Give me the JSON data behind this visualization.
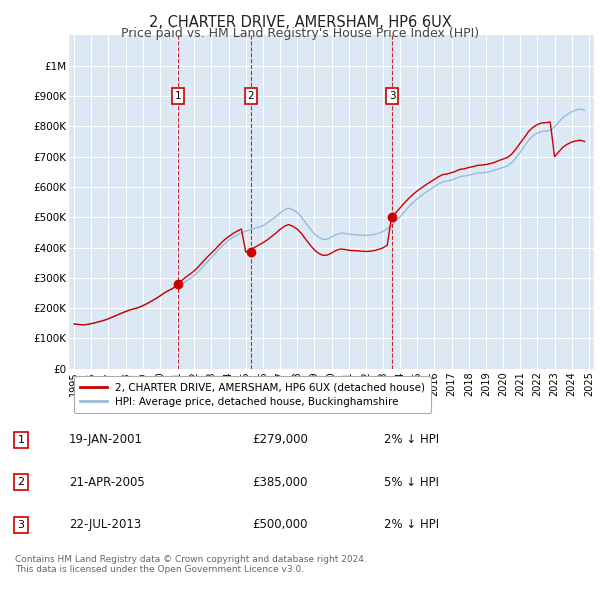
{
  "title": "2, CHARTER DRIVE, AMERSHAM, HP6 6UX",
  "subtitle": "Price paid vs. HM Land Registry's House Price Index (HPI)",
  "title_fontsize": 10.5,
  "subtitle_fontsize": 9,
  "background_color": "#ffffff",
  "plot_bg_color": "#dce9f5",
  "grid_color": "#ffffff",
  "ylim": [
    0,
    1100000
  ],
  "yticks": [
    0,
    100000,
    200000,
    300000,
    400000,
    500000,
    600000,
    700000,
    800000,
    900000,
    1000000
  ],
  "ytick_labels": [
    "£0",
    "£100K",
    "£200K",
    "£300K",
    "£400K",
    "£500K",
    "£600K",
    "£700K",
    "£800K",
    "£900K",
    "£1M"
  ],
  "xlim_start": 1994.7,
  "xlim_end": 2025.3,
  "xtick_years": [
    1995,
    1996,
    1997,
    1998,
    1999,
    2000,
    2001,
    2002,
    2003,
    2004,
    2005,
    2006,
    2007,
    2008,
    2009,
    2010,
    2011,
    2012,
    2013,
    2014,
    2015,
    2016,
    2017,
    2018,
    2019,
    2020,
    2021,
    2022,
    2023,
    2024,
    2025
  ],
  "hpi_line_color": "#99bbdd",
  "price_line_color": "#cc0000",
  "sale_marker_color": "#cc0000",
  "sale_box_color": "#cc0000",
  "vline_color": "#cc0000",
  "sales": [
    {
      "number": 1,
      "year": 2001.05,
      "price": 279000,
      "label": "19-JAN-2001",
      "price_str": "£279,000",
      "pct": "2%",
      "dir": "↓"
    },
    {
      "number": 2,
      "year": 2005.3,
      "price": 385000,
      "label": "21-APR-2005",
      "price_str": "£385,000",
      "pct": "5%",
      "dir": "↓"
    },
    {
      "number": 3,
      "year": 2013.55,
      "price": 500000,
      "label": "22-JUL-2013",
      "price_str": "£500,000",
      "pct": "2%",
      "dir": "↓"
    }
  ],
  "legend_label_red": "2, CHARTER DRIVE, AMERSHAM, HP6 6UX (detached house)",
  "legend_label_blue": "HPI: Average price, detached house, Buckinghamshire",
  "footnote": "Contains HM Land Registry data © Crown copyright and database right 2024.\nThis data is licensed under the Open Government Licence v3.0.",
  "hpi_years": [
    1995.0,
    1995.25,
    1995.5,
    1995.75,
    1996.0,
    1996.25,
    1996.5,
    1996.75,
    1997.0,
    1997.25,
    1997.5,
    1997.75,
    1998.0,
    1998.25,
    1998.5,
    1998.75,
    1999.0,
    1999.25,
    1999.5,
    1999.75,
    2000.0,
    2000.25,
    2000.5,
    2000.75,
    2001.0,
    2001.25,
    2001.5,
    2001.75,
    2002.0,
    2002.25,
    2002.5,
    2002.75,
    2003.0,
    2003.25,
    2003.5,
    2003.75,
    2004.0,
    2004.25,
    2004.5,
    2004.75,
    2005.0,
    2005.25,
    2005.5,
    2005.75,
    2006.0,
    2006.25,
    2006.5,
    2006.75,
    2007.0,
    2007.25,
    2007.5,
    2007.75,
    2008.0,
    2008.25,
    2008.5,
    2008.75,
    2009.0,
    2009.25,
    2009.5,
    2009.75,
    2010.0,
    2010.25,
    2010.5,
    2010.75,
    2011.0,
    2011.25,
    2011.5,
    2011.75,
    2012.0,
    2012.25,
    2012.5,
    2012.75,
    2013.0,
    2013.25,
    2013.5,
    2013.75,
    2014.0,
    2014.25,
    2014.5,
    2014.75,
    2015.0,
    2015.25,
    2015.5,
    2015.75,
    2016.0,
    2016.25,
    2016.5,
    2016.75,
    2017.0,
    2017.25,
    2017.5,
    2017.75,
    2018.0,
    2018.25,
    2018.5,
    2018.75,
    2019.0,
    2019.25,
    2019.5,
    2019.75,
    2020.0,
    2020.25,
    2020.5,
    2020.75,
    2021.0,
    2021.25,
    2021.5,
    2021.75,
    2022.0,
    2022.25,
    2022.5,
    2022.75,
    2023.0,
    2023.25,
    2023.5,
    2023.75,
    2024.0,
    2024.25,
    2024.5,
    2024.75
  ],
  "hpi_values": [
    148000,
    146000,
    145000,
    146000,
    149000,
    152000,
    156000,
    160000,
    165000,
    171000,
    177000,
    183000,
    189000,
    194000,
    198000,
    202000,
    208000,
    215000,
    223000,
    231000,
    240000,
    250000,
    258000,
    265000,
    271000,
    279000,
    288000,
    297000,
    308000,
    321000,
    336000,
    351000,
    366000,
    382000,
    398000,
    412000,
    424000,
    433000,
    441000,
    448000,
    454000,
    459000,
    463000,
    467000,
    472000,
    481000,
    491000,
    502000,
    514000,
    524000,
    530000,
    524000,
    516000,
    500000,
    481000,
    462000,
    445000,
    434000,
    427000,
    427000,
    435000,
    442000,
    447000,
    447000,
    444000,
    443000,
    442000,
    441000,
    440000,
    441000,
    443000,
    447000,
    453000,
    462000,
    473000,
    487000,
    502000,
    518000,
    534000,
    548000,
    561000,
    572000,
    582000,
    592000,
    601000,
    610000,
    617000,
    619000,
    623000,
    628000,
    634000,
    636000,
    639000,
    642000,
    646000,
    647000,
    648000,
    651000,
    655000,
    660000,
    664000,
    669000,
    680000,
    696000,
    715000,
    735000,
    755000,
    769000,
    778000,
    783000,
    784000,
    787000,
    798000,
    814000,
    830000,
    840000,
    848000,
    854000,
    857000,
    853000
  ],
  "price_years": [
    1995.0,
    1995.25,
    1995.5,
    1995.75,
    1996.0,
    1996.25,
    1996.5,
    1996.75,
    1997.0,
    1997.25,
    1997.5,
    1997.75,
    1998.0,
    1998.25,
    1998.5,
    1998.75,
    1999.0,
    1999.25,
    1999.5,
    1999.75,
    2000.0,
    2000.25,
    2000.5,
    2000.75,
    2001.0,
    2001.25,
    2001.5,
    2001.75,
    2002.0,
    2002.25,
    2002.5,
    2002.75,
    2003.0,
    2003.25,
    2003.5,
    2003.75,
    2004.0,
    2004.25,
    2004.5,
    2004.75,
    2005.0,
    2005.25,
    2005.5,
    2005.75,
    2006.0,
    2006.25,
    2006.5,
    2006.75,
    2007.0,
    2007.25,
    2007.5,
    2007.75,
    2008.0,
    2008.25,
    2008.5,
    2008.75,
    2009.0,
    2009.25,
    2009.5,
    2009.75,
    2010.0,
    2010.25,
    2010.5,
    2010.75,
    2011.0,
    2011.25,
    2011.5,
    2011.75,
    2012.0,
    2012.25,
    2012.5,
    2012.75,
    2013.0,
    2013.25,
    2013.5,
    2013.75,
    2014.0,
    2014.25,
    2014.5,
    2014.75,
    2015.0,
    2015.25,
    2015.5,
    2015.75,
    2016.0,
    2016.25,
    2016.5,
    2016.75,
    2017.0,
    2017.25,
    2017.5,
    2017.75,
    2018.0,
    2018.25,
    2018.5,
    2018.75,
    2019.0,
    2019.25,
    2019.5,
    2019.75,
    2020.0,
    2020.25,
    2020.5,
    2020.75,
    2021.0,
    2021.25,
    2021.5,
    2021.75,
    2022.0,
    2022.25,
    2022.5,
    2022.75,
    2023.0,
    2023.25,
    2023.5,
    2023.75,
    2024.0,
    2024.25,
    2024.5,
    2024.75
  ],
  "price_values": [
    148000,
    146000,
    145000,
    146000,
    149000,
    152000,
    156000,
    160000,
    165000,
    171000,
    177000,
    183000,
    189000,
    194000,
    198000,
    202000,
    208000,
    215000,
    223000,
    231000,
    240000,
    250000,
    258000,
    265000,
    279000,
    290000,
    302000,
    312000,
    323000,
    337000,
    353000,
    368000,
    382000,
    396000,
    411000,
    425000,
    436000,
    446000,
    454000,
    461000,
    385000,
    393000,
    400000,
    408000,
    416000,
    425000,
    436000,
    447000,
    460000,
    470000,
    476000,
    470000,
    461000,
    446000,
    427000,
    409000,
    392000,
    381000,
    374000,
    375000,
    382000,
    390000,
    395000,
    394000,
    391000,
    390000,
    389000,
    388000,
    387000,
    388000,
    390000,
    394000,
    399000,
    408000,
    500000,
    515000,
    531000,
    547000,
    562000,
    575000,
    587000,
    597000,
    607000,
    616000,
    625000,
    634000,
    641000,
    643000,
    647000,
    652000,
    658000,
    660000,
    664000,
    667000,
    671000,
    672000,
    674000,
    677000,
    681000,
    687000,
    692000,
    697000,
    708000,
    725000,
    745000,
    764000,
    784000,
    797000,
    806000,
    811000,
    812000,
    814000,
    700000,
    716000,
    732000,
    741000,
    748000,
    752000,
    754000,
    750000
  ]
}
